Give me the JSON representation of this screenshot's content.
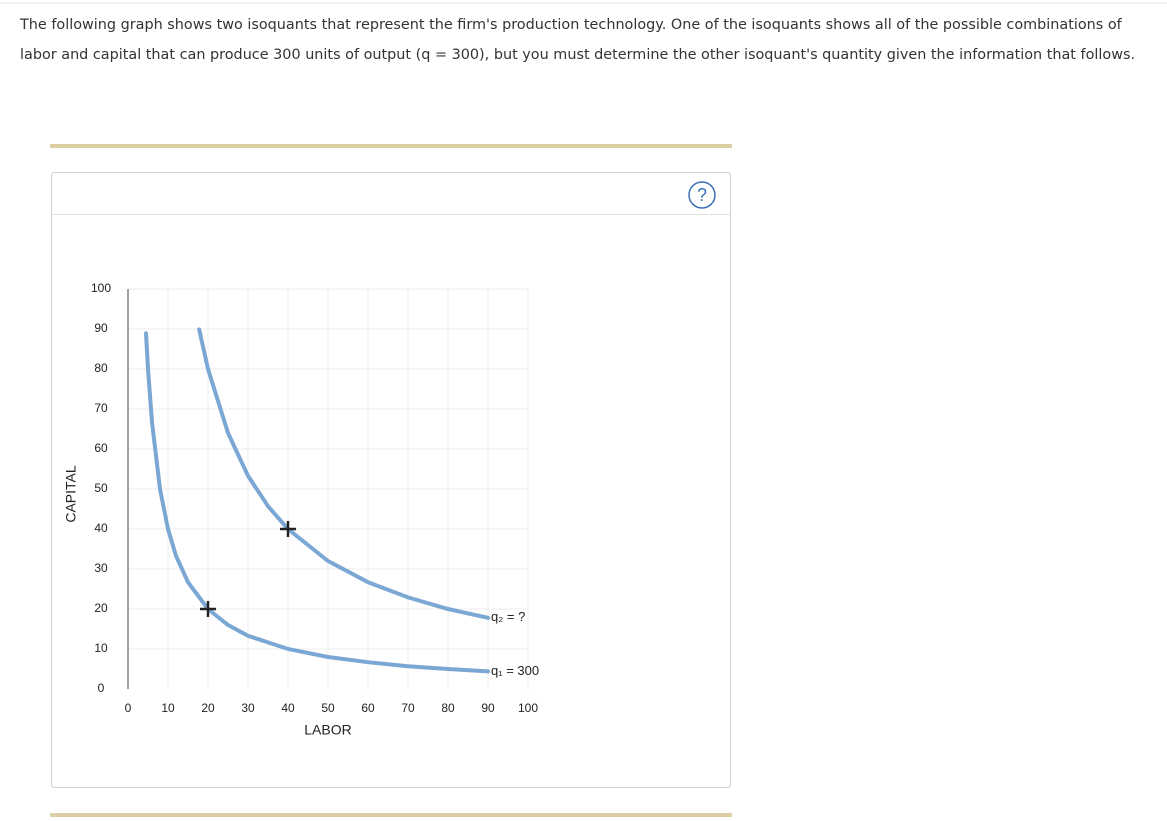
{
  "intro_text": "The following graph shows two isoquants that represent the firm's production technology. One of the isoquants shows all of the possible combinations of labor and capital that can produce 300 units of output (q = 300), but you must determine the other isoquant's quantity given the information that follows.",
  "help_icon": "?",
  "chart_data": {
    "type": "line",
    "xlabel": "LABOR",
    "ylabel": "CAPITAL",
    "xlim": [
      0,
      100
    ],
    "ylim": [
      0,
      100
    ],
    "xticks": [
      0,
      10,
      20,
      30,
      40,
      50,
      60,
      70,
      80,
      90,
      100
    ],
    "yticks": [
      0,
      10,
      20,
      30,
      40,
      50,
      60,
      70,
      80,
      90,
      100
    ],
    "grid": true,
    "series": [
      {
        "name": "q₁ = 300",
        "color": "#7ba7d4",
        "x": [
          4.5,
          5,
          6,
          8,
          10,
          12,
          15,
          20,
          25,
          30,
          40,
          50,
          60,
          70,
          80,
          90
        ],
        "values": [
          88.9,
          80,
          66.7,
          50,
          40,
          33.3,
          26.7,
          20,
          16,
          13.3,
          10,
          8,
          6.7,
          5.7,
          5,
          4.4
        ]
      },
      {
        "name": "q₂ = ?",
        "color": "#7ba7d4",
        "x": [
          17.8,
          20,
          25,
          30,
          35,
          40,
          50,
          60,
          70,
          80,
          90
        ],
        "values": [
          89.9,
          80,
          64,
          53.3,
          45.7,
          40,
          32,
          26.7,
          22.9,
          20,
          17.8
        ]
      }
    ],
    "points": [
      {
        "x": 20,
        "y": 20
      },
      {
        "x": 40,
        "y": 40
      }
    ],
    "point_color": "#222"
  }
}
